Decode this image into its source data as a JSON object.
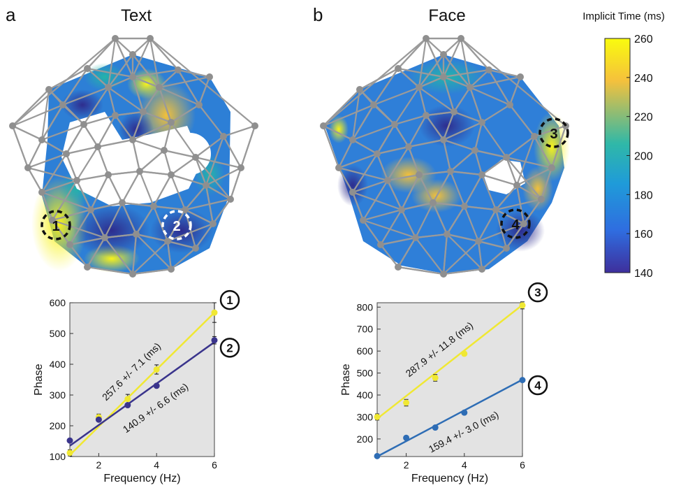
{
  "panels": {
    "a": {
      "letter": "a",
      "title": "Text"
    },
    "b": {
      "letter": "b",
      "title": "Face"
    }
  },
  "colorbar": {
    "title": "Implicit Time (ms)",
    "ticks": [
      "260",
      "240",
      "220",
      "200",
      "180",
      "160",
      "140"
    ],
    "range": [
      140,
      260
    ],
    "colors": [
      "#f9fb0e",
      "#f5c13c",
      "#2fb8a8",
      "#1f9bd9",
      "#2f6de0",
      "#3e2f9c"
    ]
  },
  "scalp_markers": [
    {
      "label": "1",
      "style": "black-dashed"
    },
    {
      "label": "2",
      "style": "white-dashed"
    },
    {
      "label": "3",
      "style": "black-dashed"
    },
    {
      "label": "4",
      "style": "black-dashed"
    }
  ],
  "chart_data": [
    {
      "type": "line",
      "panel": "a",
      "xlabel": "Frequency (Hz)",
      "ylabel": "Phase",
      "xlim": [
        1,
        6
      ],
      "ylim": [
        100,
        600
      ],
      "xticks": [
        "2",
        "4",
        "6"
      ],
      "yticks": [
        "100",
        "200",
        "300",
        "400",
        "500",
        "600"
      ],
      "background": "#e3e3e3",
      "series": [
        {
          "marker": "1",
          "color": "#f0e833",
          "slope_label": "257.6 +/- 7.1 (ms)",
          "x": [
            1,
            2,
            3,
            4,
            6
          ],
          "y": [
            112,
            228,
            287,
            383,
            568
          ],
          "err": [
            10,
            10,
            15,
            15,
            32
          ],
          "fit": [
            [
              1,
              105
            ],
            [
              6,
              568
            ]
          ]
        },
        {
          "marker": "2",
          "color": "#3a348c",
          "slope_label": "140.9 +/- 6.6 (ms)",
          "x": [
            1,
            2,
            3,
            4,
            6
          ],
          "y": [
            152,
            220,
            267,
            330,
            478
          ],
          "err": [
            5,
            5,
            6,
            6,
            12
          ],
          "fit": [
            [
              1,
              135
            ],
            [
              6,
              472
            ]
          ]
        }
      ]
    },
    {
      "type": "line",
      "panel": "b",
      "xlabel": "Frequency (Hz)",
      "ylabel": "Phase",
      "xlim": [
        1,
        6
      ],
      "ylim": [
        120,
        820
      ],
      "xticks": [
        "2",
        "4",
        "6"
      ],
      "yticks": [
        "200",
        "300",
        "400",
        "500",
        "600",
        "700",
        "800"
      ],
      "background": "#e3e3e3",
      "series": [
        {
          "marker": "3",
          "color": "#f0e833",
          "slope_label": "287.9 +/- 11.8 (ms)",
          "x": [
            1,
            2,
            3,
            4,
            6
          ],
          "y": [
            300,
            365,
            478,
            588,
            808
          ],
          "err": [
            14,
            15,
            15,
            8,
            16
          ],
          "fit": [
            [
              1,
              292
            ],
            [
              6,
              810
            ]
          ]
        },
        {
          "marker": "4",
          "color": "#2e6db5",
          "slope_label": "159.4 +/- 3.0 (ms)",
          "x": [
            1,
            2,
            3,
            4,
            6
          ],
          "y": [
            122,
            205,
            252,
            320,
            468
          ],
          "err": [
            4,
            6,
            6,
            8,
            6
          ],
          "fit": [
            [
              1,
              120
            ],
            [
              6,
              470
            ]
          ]
        }
      ]
    }
  ]
}
